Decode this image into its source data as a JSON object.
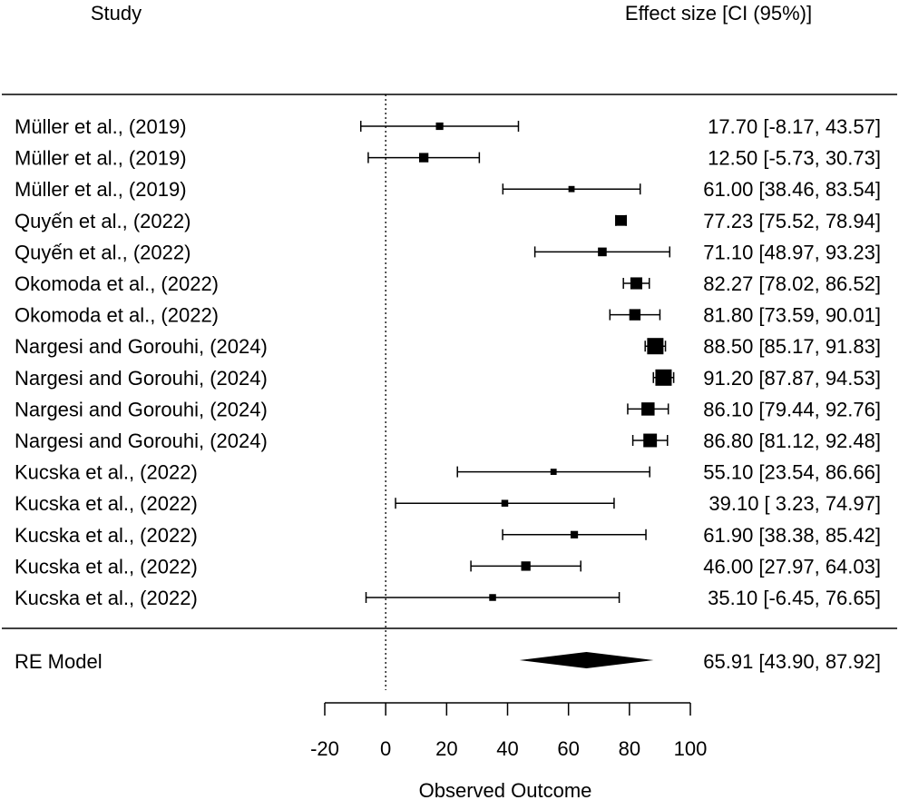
{
  "chart_data": {
    "type": "forest",
    "header_left": "Study",
    "header_right": "Effect size [CI (95%)]",
    "xlabel": "Observed Outcome",
    "xlim": [
      -20,
      100
    ],
    "xticks": [
      -20,
      0,
      20,
      40,
      60,
      80,
      100
    ],
    "xtick_labels": [
      "-20",
      "0",
      "20",
      "40",
      "60",
      "80",
      "100"
    ],
    "reference_line": 0,
    "studies": [
      {
        "label": "Müller et al., (2019)",
        "estimate": 17.7,
        "lower": -8.17,
        "upper": 43.57,
        "text": "17.70 [-8.17, 43.57]",
        "weight": 0.3
      },
      {
        "label": "Müller et al., (2019)",
        "estimate": 12.5,
        "lower": -5.73,
        "upper": 30.73,
        "text": "12.50 [-5.73, 30.73]",
        "weight": 0.45
      },
      {
        "label": "Müller et al., (2019)",
        "estimate": 61.0,
        "lower": 38.46,
        "upper": 83.54,
        "text": "61.00 [38.46, 83.54]",
        "weight": 0.2
      },
      {
        "label": "Quyến et al., (2022)",
        "estimate": 77.23,
        "lower": 75.52,
        "upper": 78.94,
        "text": "77.23 [75.52, 78.94]",
        "weight": 0.55
      },
      {
        "label": "Quyến et al., (2022)",
        "estimate": 71.1,
        "lower": 48.97,
        "upper": 93.23,
        "text": "71.10 [48.97, 93.23]",
        "weight": 0.4
      },
      {
        "label": "Okomoda et al., (2022)",
        "estimate": 82.27,
        "lower": 78.02,
        "upper": 86.52,
        "text": "82.27 [78.02, 86.52]",
        "weight": 0.65
      },
      {
        "label": "Okomoda et al., (2022)",
        "estimate": 81.8,
        "lower": 73.59,
        "upper": 90.01,
        "text": "81.80 [73.59, 90.01]",
        "weight": 0.6
      },
      {
        "label": "Nargesi and Gorouhi, (2024)",
        "estimate": 88.5,
        "lower": 85.17,
        "upper": 91.83,
        "text": "88.50 [85.17, 91.83]",
        "weight": 1.0
      },
      {
        "label": "Nargesi and Gorouhi, (2024)",
        "estimate": 91.2,
        "lower": 87.87,
        "upper": 94.53,
        "text": "91.20 [87.87, 94.53]",
        "weight": 1.0
      },
      {
        "label": "Nargesi and Gorouhi, (2024)",
        "estimate": 86.1,
        "lower": 79.44,
        "upper": 92.76,
        "text": "86.10 [79.44, 92.76]",
        "weight": 0.75
      },
      {
        "label": "Nargesi and Gorouhi, (2024)",
        "estimate": 86.8,
        "lower": 81.12,
        "upper": 92.48,
        "text": "86.80 [81.12, 92.48]",
        "weight": 0.78
      },
      {
        "label": "Kucska et al., (2022)",
        "estimate": 55.1,
        "lower": 23.54,
        "upper": 86.66,
        "text": "55.10 [23.54, 86.66]",
        "weight": 0.2
      },
      {
        "label": "Kucska et al., (2022)",
        "estimate": 39.1,
        "lower": 3.23,
        "upper": 74.97,
        "text": "39.10 [ 3.23, 74.97]",
        "weight": 0.25
      },
      {
        "label": "Kucska et al., (2022)",
        "estimate": 61.9,
        "lower": 38.38,
        "upper": 85.42,
        "text": "61.90 [38.38, 85.42]",
        "weight": 0.3
      },
      {
        "label": "Kucska et al., (2022)",
        "estimate": 46.0,
        "lower": 27.97,
        "upper": 64.03,
        "text": "46.00 [27.97, 64.03]",
        "weight": 0.45
      },
      {
        "label": "Kucska et al., (2022)",
        "estimate": 35.1,
        "lower": -6.45,
        "upper": 76.65,
        "text": "35.10 [-6.45, 76.65]",
        "weight": 0.25
      }
    ],
    "summary": {
      "label": "RE Model",
      "estimate": 65.91,
      "lower": 43.9,
      "upper": 87.92,
      "text": "65.91 [43.90, 87.92]"
    }
  }
}
